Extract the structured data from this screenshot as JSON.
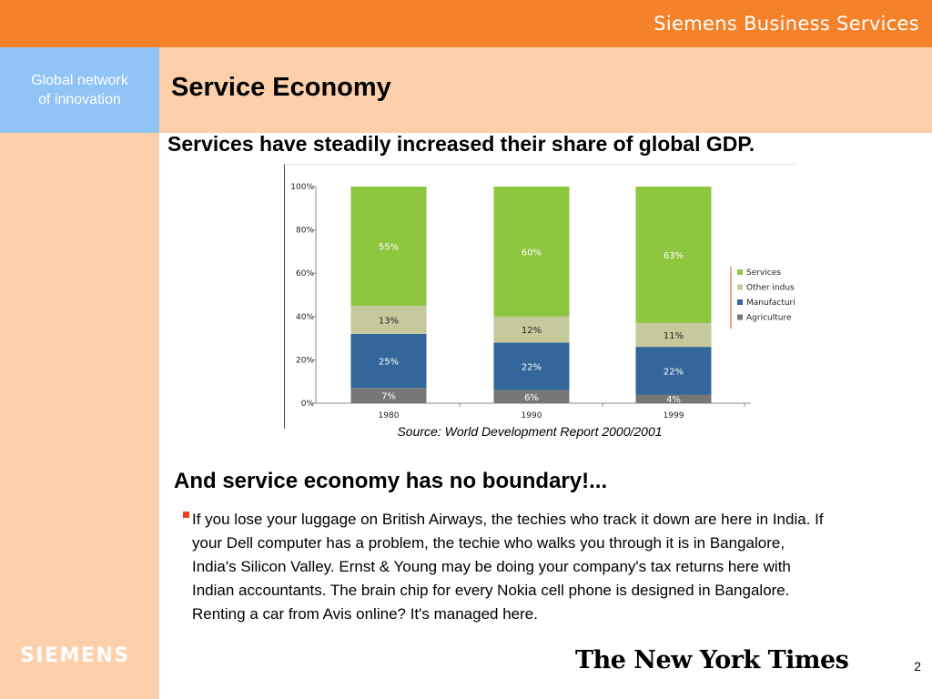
{
  "header": {
    "brand": "Siemens Business Services"
  },
  "sidebar": {
    "tagline": "Global network\nof innovation",
    "logo": "SIEMENS"
  },
  "slide": {
    "title": "Service Economy",
    "subtitle": "Services have steadily increased their share of global GDP.",
    "source": "Source: World Development Report 2000/2001",
    "heading2": "And service economy has no boundary!...",
    "bullet": "If you lose your luggage on British Airways, the techies who track it down are here in India.  If your Dell computer has a problem, the techie who walks you through it is in Bangalore, India's Silicon Valley.  Ernst  & Young may be doing your company's tax returns here with Indian accountants. The brain chip for every Nokia cell phone is designed in Bangalore.  Renting a car from Avis online?  It's managed here.",
    "newspaper_logo": "The New York Times",
    "page_number": "2"
  },
  "colors": {
    "header_orange": "#f5822a",
    "sidebar_peach": "#fdd0ab",
    "tagline_blue": "#8fc4f4",
    "bullet_red": "#e8411e"
  },
  "chart_data": {
    "type": "bar",
    "stacked": true,
    "categories": [
      "1980",
      "1990",
      "1999"
    ],
    "series": [
      {
        "name": "Agriculture",
        "values": [
          7,
          6,
          4
        ],
        "labels": [
          "7%",
          "6%",
          "4%"
        ],
        "color": "#777777"
      },
      {
        "name": "Manufacturing",
        "values": [
          25,
          22,
          22
        ],
        "labels": [
          "25%",
          "22%",
          "22%"
        ],
        "color": "#33669a"
      },
      {
        "name": "Other industry",
        "values": [
          13,
          12,
          11
        ],
        "labels": [
          "13%",
          "12%",
          "11%"
        ],
        "color": "#c6c99b"
      },
      {
        "name": "Services",
        "values": [
          55,
          60,
          63
        ],
        "labels": [
          "55%",
          "60%",
          "63%"
        ],
        "color": "#8dc63f"
      }
    ],
    "legend_order": [
      "Services",
      "Other industry",
      "Manufacturing",
      "Agriculture"
    ],
    "yticks": [
      "0%",
      "20%",
      "40%",
      "60%",
      "80%",
      "100%"
    ],
    "ylim": [
      0,
      100
    ],
    "legend_position": "right"
  }
}
